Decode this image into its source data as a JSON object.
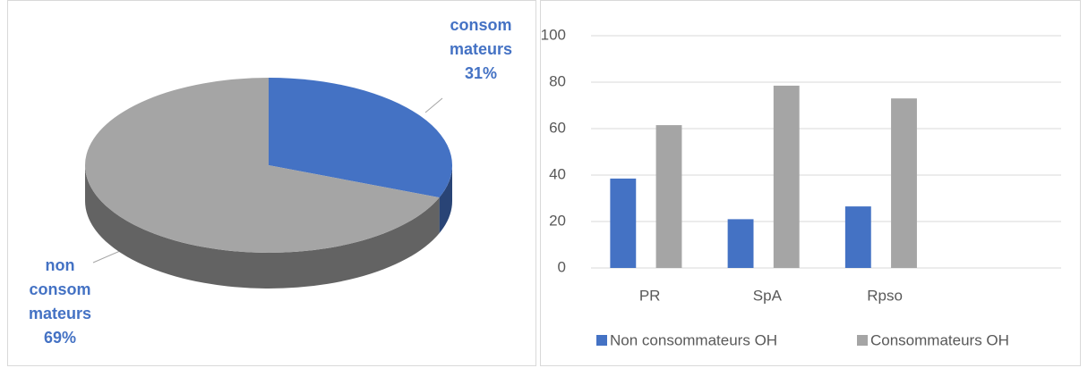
{
  "chart_data": [
    {
      "type": "pie3d",
      "categories": [
        "consom mateurs",
        "non consom mateurs"
      ],
      "values": [
        31,
        69
      ],
      "value_labels": [
        "31%",
        "69%"
      ],
      "colors": [
        "#4472c4",
        "#a5a5a5"
      ]
    },
    {
      "type": "bar",
      "categories": [
        "PR",
        "SpA",
        "Rpso",
        null
      ],
      "series": [
        {
          "name": "Non consommateurs OH",
          "color": "#4472c4",
          "values": [
            38.5,
            21,
            26.5,
            null
          ]
        },
        {
          "name": "Consommateurs OH",
          "color": "#a5a5a5",
          "values": [
            61.5,
            78.5,
            73,
            null
          ]
        }
      ],
      "ylim": [
        0,
        100
      ],
      "yticks": [
        0,
        20,
        40,
        60,
        80,
        100
      ],
      "grid": true,
      "legend": "bottom"
    }
  ]
}
